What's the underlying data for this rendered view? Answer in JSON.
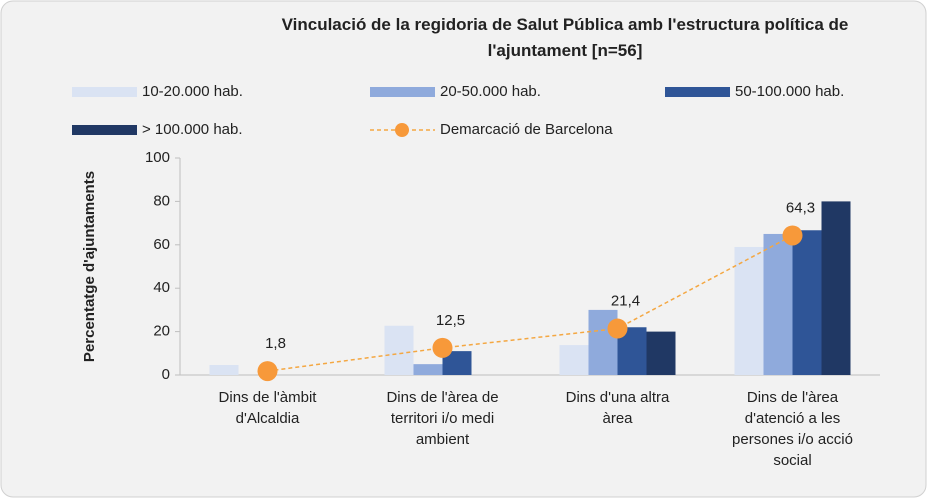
{
  "chart_data": {
    "type": "bar",
    "title": "Vinculació de la regidoria de Salut Pública amb l'estructura política de l'ajuntament [n=56]",
    "y_label": "Percentatge d'ajuntaments",
    "categories": [
      "Dins de l'àmbit d'Alcaldia",
      "Dins de l'àrea de territori i/o medi ambient",
      "Dins d'una altra àrea",
      "Dins de l'àrea d'atenció a les persones i/o acció social"
    ],
    "series": [
      {
        "name": "10-20.000 hab.",
        "color": "#dae3f3",
        "values": [
          4.6,
          22.7,
          13.8,
          59
        ]
      },
      {
        "name": "20-50.000 hab.",
        "color": "#8faadc",
        "values": [
          0,
          5,
          30,
          65
        ]
      },
      {
        "name": "50-100.000 hab.",
        "color": "#2f5597",
        "values": [
          0,
          11,
          22,
          66.7
        ]
      },
      {
        "name": "> 100.000 hab.",
        "color": "#203864",
        "values": [
          0,
          0,
          20,
          80
        ]
      },
      {
        "name": "Demarcació de Barcelona",
        "type": "line",
        "color": "#f4a742",
        "marker_color": "#f7993a",
        "dashed": true,
        "values": [
          1.8,
          12.5,
          21.4,
          64.3
        ],
        "value_labels": [
          "1,8",
          "12,5",
          "21,4",
          "64,3"
        ]
      }
    ],
    "ylim": [
      0,
      100
    ],
    "yticks": [
      0,
      20,
      40,
      60,
      80,
      100
    ],
    "grid": false
  }
}
